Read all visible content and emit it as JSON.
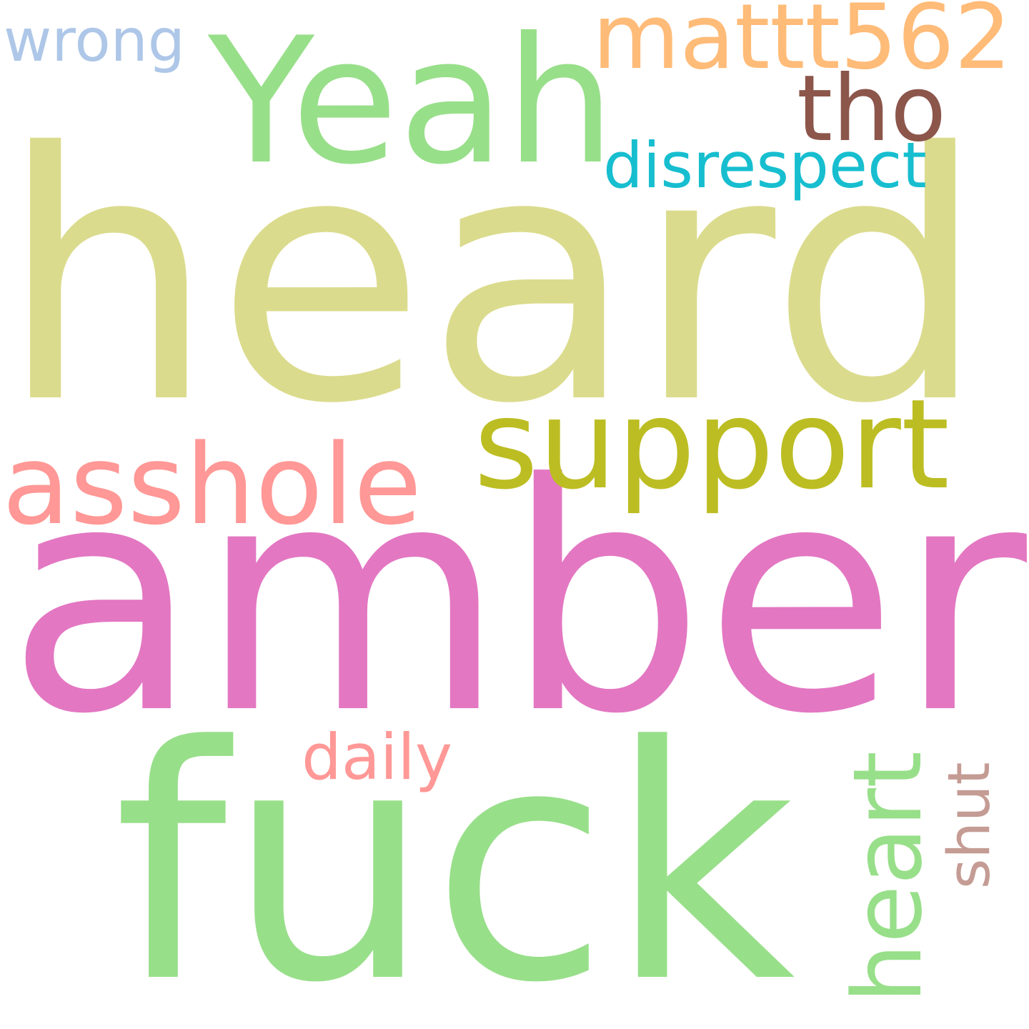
{
  "words": [
    {
      "text": "heard",
      "color": "#dbdb8d"
    },
    {
      "text": "amber",
      "color": "#e377c2"
    },
    {
      "text": "fuck",
      "color": "#98df8a"
    },
    {
      "text": "Yeah",
      "color": "#98df8a"
    },
    {
      "text": "support",
      "color": "#bcbd22"
    },
    {
      "text": "asshole",
      "color": "#ff9896"
    },
    {
      "text": "mattt562",
      "color": "#ffbb78"
    },
    {
      "text": "tho",
      "color": "#8c564b"
    },
    {
      "text": "disrespect",
      "color": "#17becf"
    },
    {
      "text": "wrong",
      "color": "#aec7e8"
    },
    {
      "text": "daily",
      "color": "#ff9896"
    },
    {
      "text": "heart",
      "color": "#98df8a",
      "orientation": "vertical"
    },
    {
      "text": "shut",
      "color": "#c49c94",
      "orientation": "vertical"
    }
  ]
}
